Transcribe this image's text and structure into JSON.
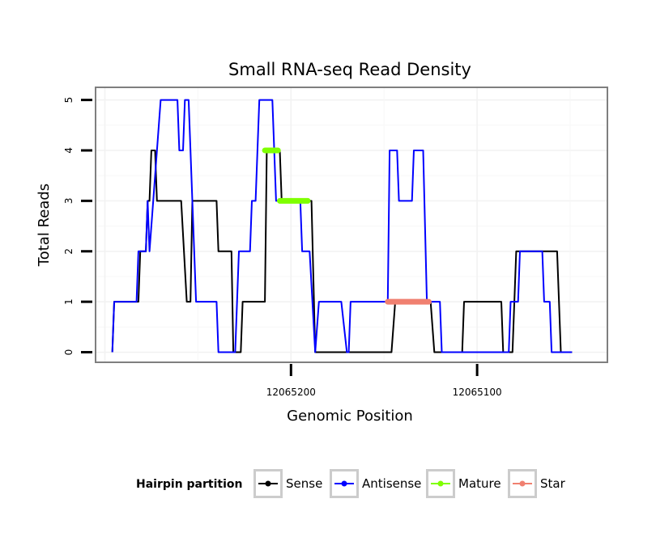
{
  "chart_data": {
    "type": "line",
    "title": "Small RNA-seq Read Density",
    "xlabel": "Genomic Position",
    "ylabel": "Total Reads",
    "xlim": [
      12065305,
      12065030
    ],
    "ylim": [
      -0.2,
      5.25
    ],
    "x_reversed": true,
    "grid": true,
    "legend_position": "bottom",
    "x_ticks": [
      {
        "value": 12065200,
        "label": "12065200"
      },
      {
        "value": 12065100,
        "label": "12065100"
      }
    ],
    "y_ticks": [
      {
        "value": 0,
        "label": "0"
      },
      {
        "value": 1,
        "label": "1"
      },
      {
        "value": 2,
        "label": "2"
      },
      {
        "value": 3,
        "label": "3"
      },
      {
        "value": 4,
        "label": "4"
      },
      {
        "value": 5,
        "label": "5"
      }
    ],
    "legend": {
      "title": "Hairpin partition",
      "items": [
        {
          "name": "Sense",
          "color": "#000000"
        },
        {
          "name": "Antisense",
          "color": "#0000ff"
        },
        {
          "name": "Mature",
          "color": "#7fff00"
        },
        {
          "name": "Star",
          "color": "#f08070"
        }
      ]
    },
    "series": [
      {
        "name": "Sense",
        "color": "#000000",
        "points": [
          [
            12065296,
            0
          ],
          [
            12065295,
            1
          ],
          [
            12065282,
            1
          ],
          [
            12065281,
            2
          ],
          [
            12065278,
            2
          ],
          [
            12065277,
            3
          ],
          [
            12065276,
            3
          ],
          [
            12065275,
            4
          ],
          [
            12065273,
            4
          ],
          [
            12065272,
            3
          ],
          [
            12065259,
            3
          ],
          [
            12065256,
            1
          ],
          [
            12065254,
            1
          ],
          [
            12065253,
            3
          ],
          [
            12065240,
            3
          ],
          [
            12065239,
            2
          ],
          [
            12065232,
            2
          ],
          [
            12065231,
            0
          ],
          [
            12065227,
            0
          ],
          [
            12065226,
            1
          ],
          [
            12065214,
            1
          ],
          [
            12065213,
            4
          ],
          [
            12065206,
            4
          ],
          [
            12065205,
            3
          ],
          [
            12065189,
            3
          ],
          [
            12065187,
            0
          ],
          [
            12065146,
            0
          ],
          [
            12065144,
            1
          ],
          [
            12065125,
            1
          ],
          [
            12065123,
            0
          ],
          [
            12065108,
            0
          ],
          [
            12065107,
            1
          ],
          [
            12065087,
            1
          ],
          [
            12065086,
            0
          ],
          [
            12065081,
            0
          ],
          [
            12065079,
            2
          ],
          [
            12065057,
            2
          ],
          [
            12065055,
            0
          ],
          [
            12065049,
            0
          ]
        ]
      },
      {
        "name": "Antisense",
        "color": "#0000ff",
        "points": [
          [
            12065296,
            0
          ],
          [
            12065295,
            1
          ],
          [
            12065283,
            1
          ],
          [
            12065282,
            2
          ],
          [
            12065278,
            2
          ],
          [
            12065277,
            3
          ],
          [
            12065276,
            2
          ],
          [
            12065274,
            3
          ],
          [
            12065270,
            5
          ],
          [
            12065261,
            5
          ],
          [
            12065260,
            4
          ],
          [
            12065258,
            4
          ],
          [
            12065257,
            5
          ],
          [
            12065255,
            5
          ],
          [
            12065254,
            4
          ],
          [
            12065252,
            2
          ],
          [
            12065251,
            1
          ],
          [
            12065240,
            1
          ],
          [
            12065239,
            0
          ],
          [
            12065232,
            0
          ],
          [
            12065230,
            0
          ],
          [
            12065228,
            2
          ],
          [
            12065222,
            2
          ],
          [
            12065221,
            3
          ],
          [
            12065219,
            3
          ],
          [
            12065217,
            5
          ],
          [
            12065210,
            5
          ],
          [
            12065208,
            3
          ],
          [
            12065195,
            3
          ],
          [
            12065194,
            2
          ],
          [
            12065190,
            2
          ],
          [
            12065187,
            0
          ],
          [
            12065185,
            1
          ],
          [
            12065173,
            1
          ],
          [
            12065170,
            0
          ],
          [
            12065169,
            0
          ],
          [
            12065168,
            1
          ],
          [
            12065148,
            1
          ],
          [
            12065147,
            4
          ],
          [
            12065143,
            4
          ],
          [
            12065142,
            3
          ],
          [
            12065135,
            3
          ],
          [
            12065134,
            4
          ],
          [
            12065129,
            4
          ],
          [
            12065127,
            1
          ],
          [
            12065120,
            1
          ],
          [
            12065119,
            0
          ],
          [
            12065087,
            0
          ],
          [
            12065083,
            0
          ],
          [
            12065082,
            1
          ],
          [
            12065078,
            1
          ],
          [
            12065077,
            2
          ],
          [
            12065065,
            2
          ],
          [
            12065064,
            1
          ],
          [
            12065061,
            1
          ],
          [
            12065060,
            0
          ],
          [
            12065049,
            0
          ]
        ]
      },
      {
        "name": "Mature",
        "color": "#7fff00",
        "segments": [
          {
            "x0": 12065214,
            "x1": 12065207,
            "y": 4
          },
          {
            "x0": 12065206,
            "x1": 12065191,
            "y": 3
          }
        ]
      },
      {
        "name": "Star",
        "color": "#f08070",
        "segments": [
          {
            "x0": 12065148,
            "x1": 12065126,
            "y": 1
          }
        ]
      }
    ]
  }
}
